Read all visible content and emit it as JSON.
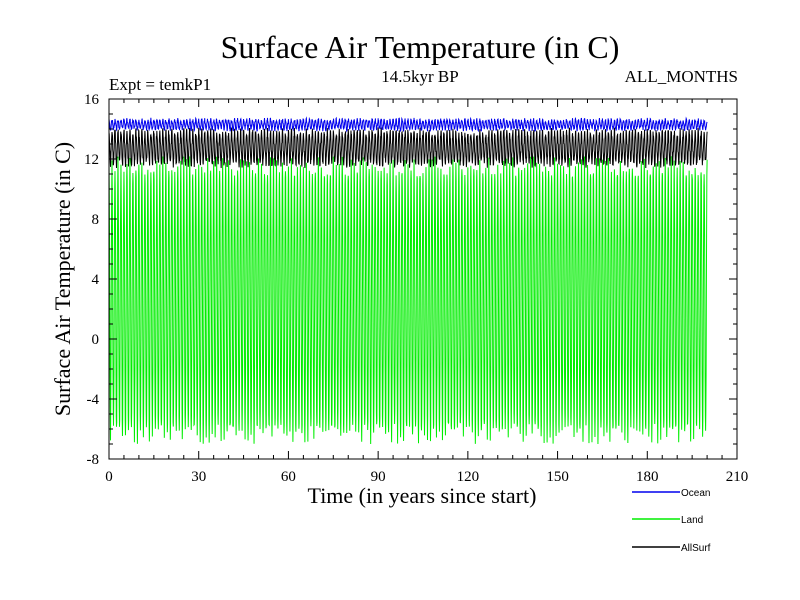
{
  "chart_data": {
    "type": "line",
    "title": "Surface Air Temperature (in C)",
    "subtitle": "14.5kyr BP",
    "experiment_label": "Expt = temkP1",
    "months_label": "ALL_MONTHS",
    "xlabel": "Time (in years since start)",
    "ylabel": "Surface Air Temperature (in C)",
    "xlim": [
      0,
      210
    ],
    "ylim": [
      -8,
      16
    ],
    "x_ticks": [
      0,
      30,
      60,
      90,
      120,
      150,
      180,
      210
    ],
    "y_ticks": [
      -8,
      -4,
      0,
      4,
      8,
      12,
      16
    ],
    "x_tick_labels": [
      "0",
      "30",
      "60",
      "90",
      "120",
      "150",
      "180",
      "210"
    ],
    "y_tick_labels": [
      "-8",
      "-4",
      "0",
      "4",
      "8",
      "12",
      "16"
    ],
    "monthly_resolution": true,
    "x_end": 200,
    "series": [
      {
        "name": "Land",
        "color": "#00ee00",
        "annual_max_approx": 11.5,
        "annual_min_approx": -6.3,
        "variability": 0.7
      },
      {
        "name": "AllSurf",
        "color": "#000000",
        "annual_max_approx": 13.8,
        "annual_min_approx": 11.7,
        "variability": 0.3
      },
      {
        "name": "Ocean",
        "color": "#0000ee",
        "annual_max_approx": 14.6,
        "annual_min_approx": 14.0,
        "variability": 0.15
      }
    ],
    "legend": [
      {
        "name": "Ocean",
        "color": "#0000ee"
      },
      {
        "name": "Land",
        "color": "#00ee00"
      },
      {
        "name": "AllSurf",
        "color": "#000000"
      }
    ]
  }
}
